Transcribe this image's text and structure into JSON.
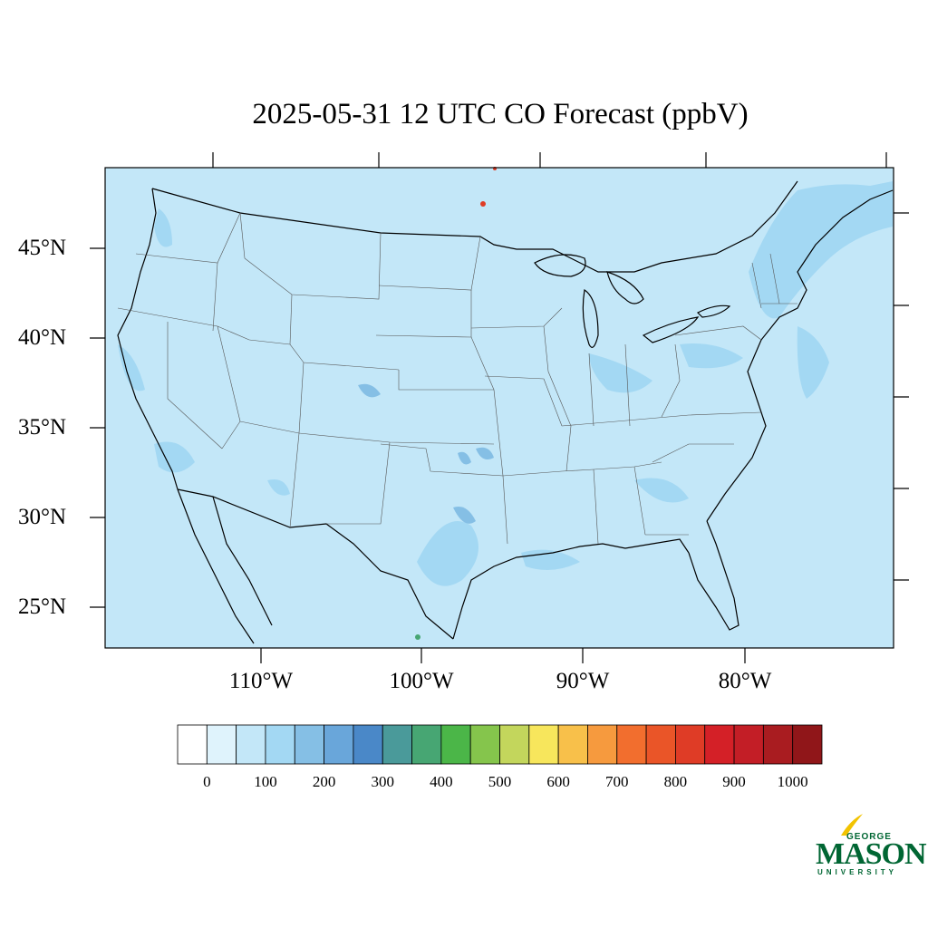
{
  "title": "2025-05-31 12 UTC CO Forecast (ppbV)",
  "map": {
    "background_color": "#c3e7f8",
    "lat_labels": [
      "45°N",
      "40°N",
      "35°N",
      "30°N",
      "25°N"
    ],
    "lon_labels": [
      "110°W",
      "100°W",
      "90°W",
      "80°W"
    ]
  },
  "colorbar": {
    "colors": [
      "#ffffff",
      "#dff3fc",
      "#c3e7f8",
      "#a3d8f3",
      "#85bfe5",
      "#69a6da",
      "#4a88c8",
      "#4a9a9a",
      "#47a673",
      "#4bb648",
      "#85c54c",
      "#c3d65c",
      "#f7e65c",
      "#f8c04a",
      "#f69a3e",
      "#f26e2e",
      "#ea5528",
      "#df3c26",
      "#d42027",
      "#c31e26",
      "#a91c20",
      "#901619"
    ],
    "labels": [
      "0",
      "100",
      "200",
      "300",
      "400",
      "500",
      "600",
      "700",
      "800",
      "900",
      "1000"
    ]
  },
  "logo": {
    "line1": "GEORGE",
    "line2": "MASON",
    "line3": "UNIVERSITY"
  }
}
